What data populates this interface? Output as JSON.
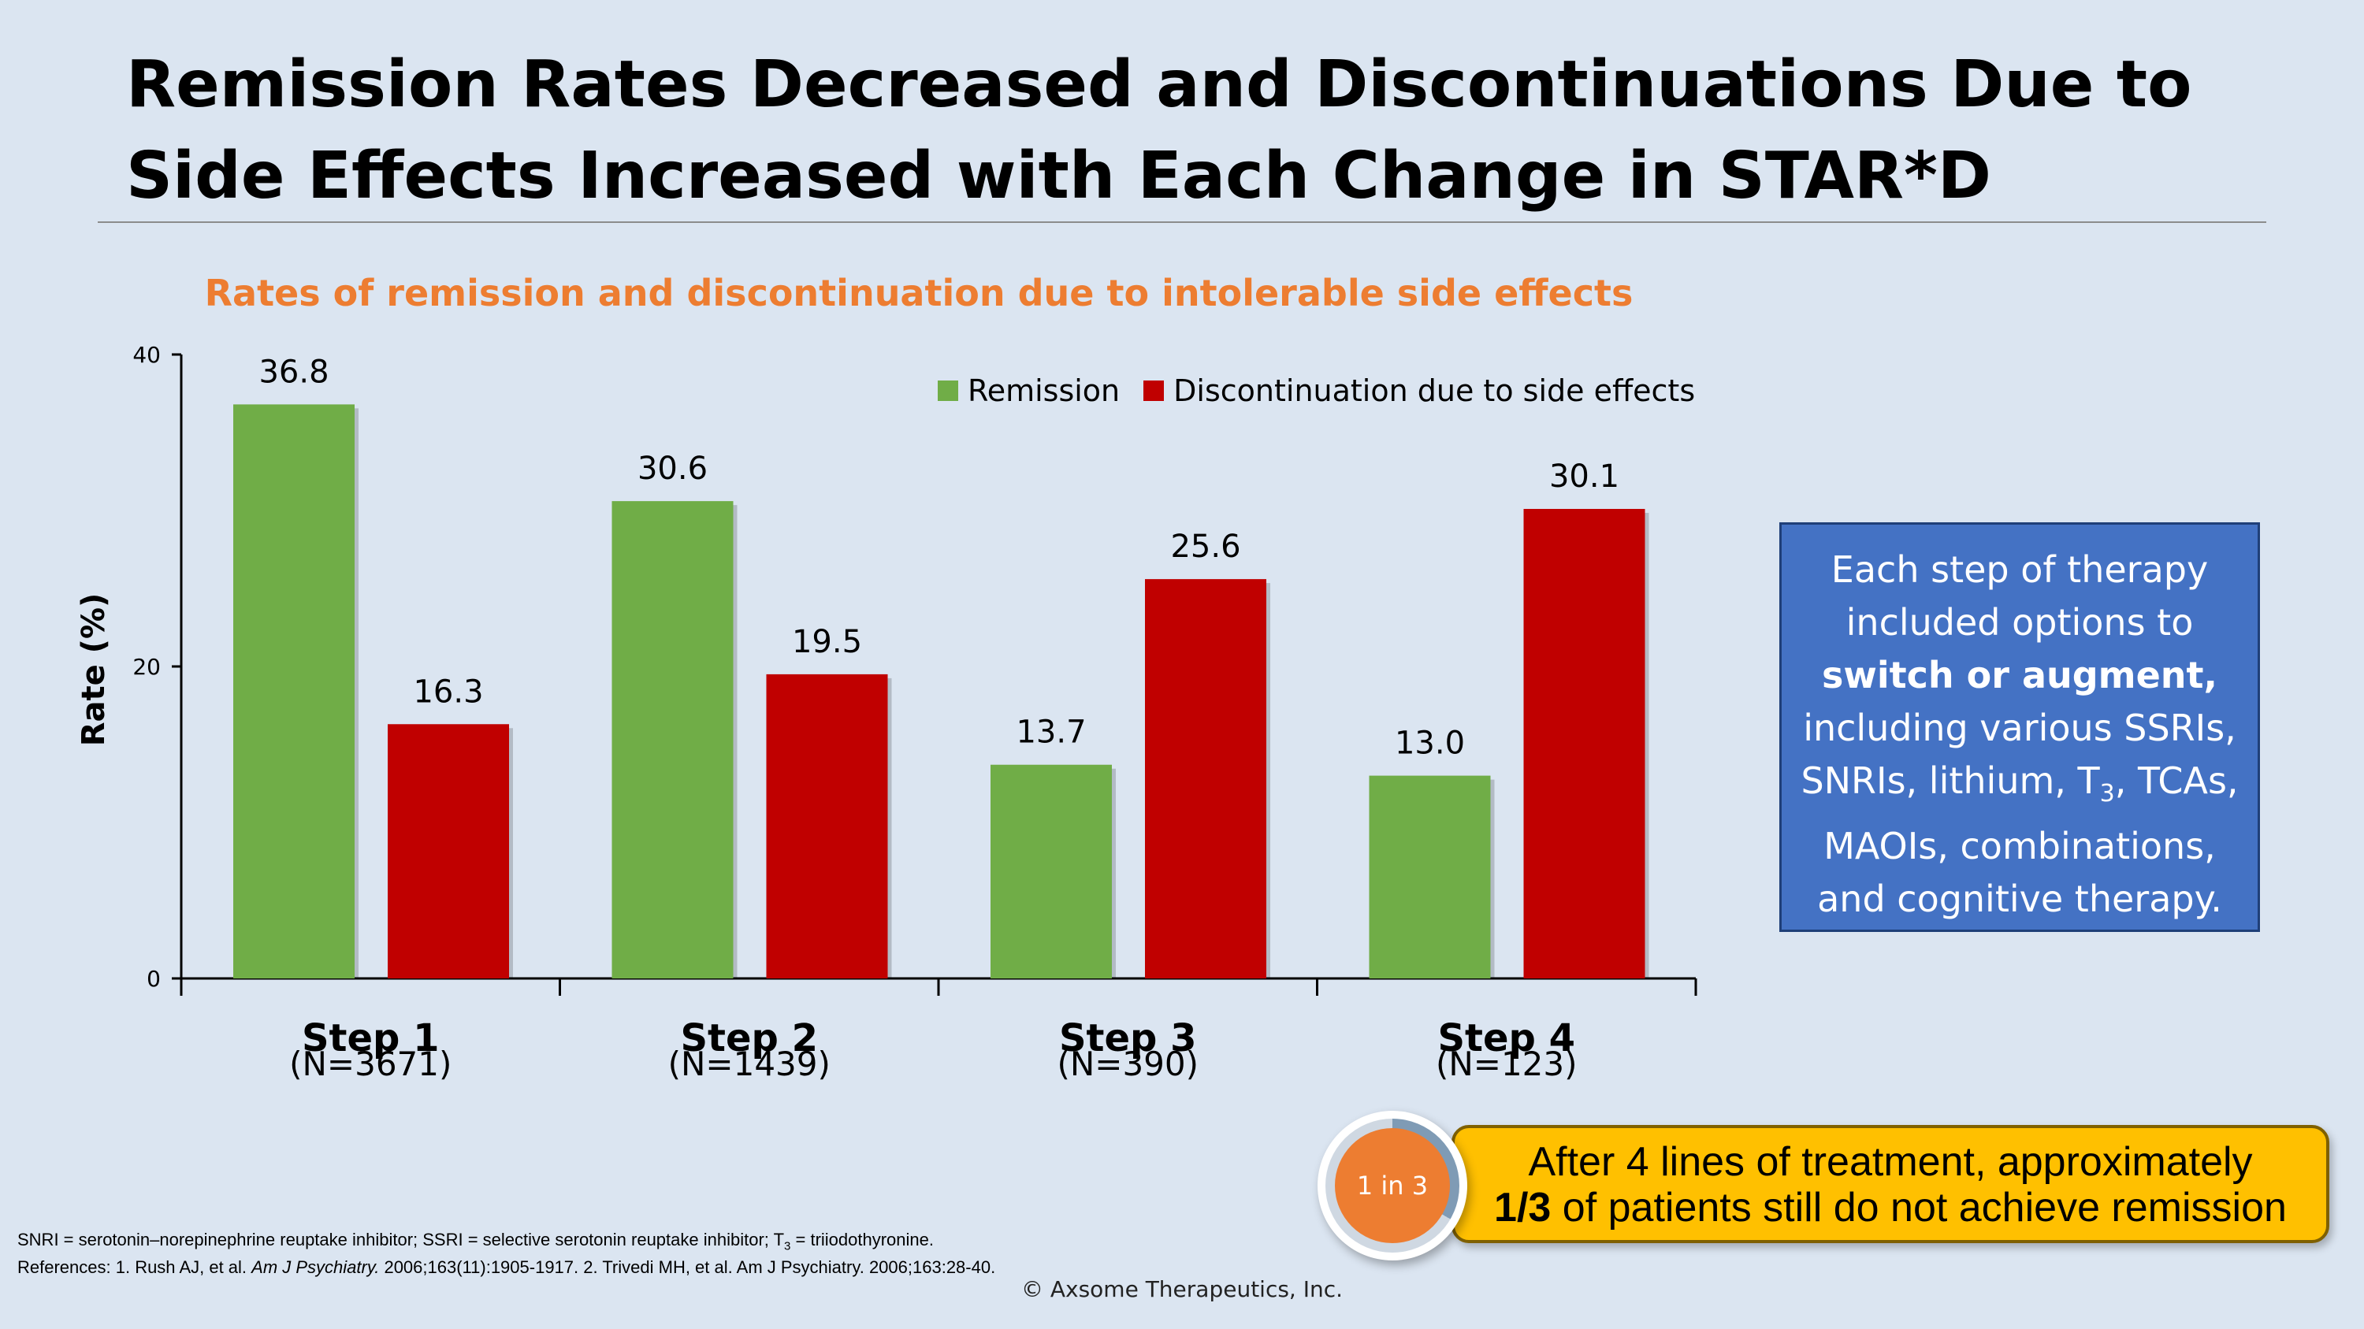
{
  "title": "Remission Rates Decreased and Discontinuations Due to Side Effects Increased with Each Change in STAR*D",
  "chart_data": {
    "type": "bar",
    "title": "Rates of remission and discontinuation due to intolerable side effects",
    "ylabel": "Rate (%)",
    "xlabel": "",
    "ylim": [
      0,
      40
    ],
    "yticks": [
      "0",
      "20",
      "40"
    ],
    "categories": [
      "Step 1",
      "Step 2",
      "Step 3",
      "Step 4"
    ],
    "category_n": [
      "(N=3671)",
      "(N=1439)",
      "(N=390)",
      "(N=123)"
    ],
    "series": [
      {
        "name": "Remission",
        "values": [
          36.8,
          30.6,
          13.7,
          13.0
        ],
        "labels": [
          "36.8",
          "30.6",
          "13.7",
          "13.0"
        ],
        "color": "#70ad47"
      },
      {
        "name": "Discontinuation due to side effects",
        "values": [
          16.3,
          19.5,
          25.6,
          30.1
        ],
        "labels": [
          "16.3",
          "19.5",
          "25.6",
          "30.1"
        ],
        "color": "#c00000"
      }
    ],
    "legend_position": "top-right",
    "grid": false
  },
  "info_box": {
    "line1": "Each step of therapy",
    "line2": "included options to",
    "bold": "switch or augment,",
    "line3": "including various SSRIs,",
    "line4a": "SNRIs, lithium, T",
    "line4sub": "3",
    "line4b": ", TCAs,",
    "line5": "MAOIs, combinations,",
    "line6": "and cognitive therapy."
  },
  "callout": {
    "circle_text": "1 in 3",
    "line1": "After 4 lines of treatment, approximately",
    "bold": "1/3",
    "line2": " of patients still do not achieve remission"
  },
  "footnotes": {
    "line1a": "SNRI = serotonin–norepinephrine reuptake inhibitor; SSRI = selective serotonin reuptake inhibitor; T",
    "line1sub": "3",
    "line1b": " = triiodothyronine.",
    "line2a": "References: 1. Rush AJ, et al. ",
    "line2journal": "Am J Psychiatry.",
    "line2b": " 2006;163(11):1905-1917. 2. Trivedi MH, et al. Am J Psychiatry. 2006;163:28-40."
  },
  "copyright": "© Axsome Therapeutics, Inc."
}
